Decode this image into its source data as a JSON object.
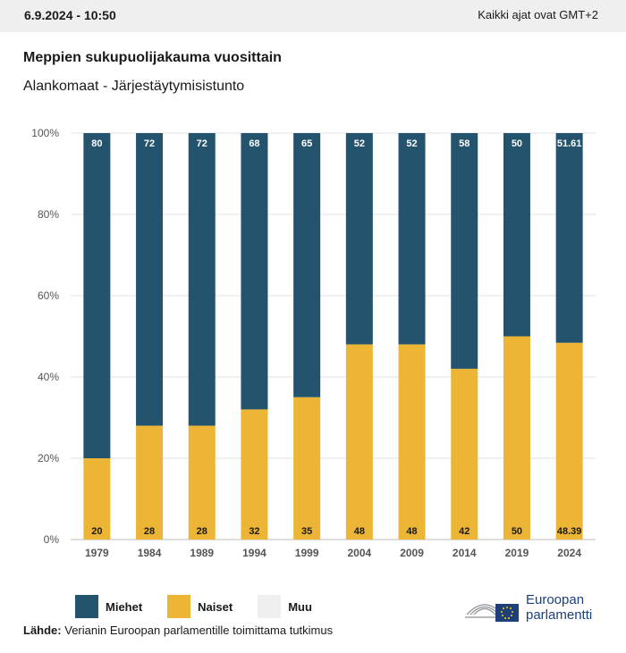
{
  "header": {
    "datetime": "6.9.2024 - 10:50",
    "timezone_note": "Kaikki ajat ovat GMT+2"
  },
  "chart_data": {
    "type": "bar",
    "stacked": true,
    "title": "Meppien sukupuolijakauma vuosittain",
    "subtitle": "Alankomaat - Järjestäytymisistunto",
    "categories": [
      "1979",
      "1984",
      "1989",
      "1994",
      "1999",
      "2004",
      "2009",
      "2014",
      "2019",
      "2024"
    ],
    "series": [
      {
        "name": "Naiset",
        "color": "#ecb535",
        "values": [
          20,
          28,
          28,
          32,
          35,
          48,
          48,
          42,
          50,
          48.39
        ]
      },
      {
        "name": "Miehet",
        "color": "#24536e",
        "values": [
          80,
          72,
          72,
          68,
          65,
          52,
          52,
          58,
          50,
          51.61
        ]
      },
      {
        "name": "Muu",
        "color": "#efefef",
        "values": [
          0,
          0,
          0,
          0,
          0,
          0,
          0,
          0,
          0,
          0
        ]
      }
    ],
    "yticks": [
      "0%",
      "20%",
      "40%",
      "60%",
      "80%",
      "100%"
    ],
    "ylim": [
      0,
      100
    ],
    "grid": true,
    "legend_position": "bottom-left"
  },
  "legend": [
    {
      "label": "Miehet",
      "color": "#24536e"
    },
    {
      "label": "Naiset",
      "color": "#ecb535"
    },
    {
      "label": "Muu",
      "color": "#efefef"
    }
  ],
  "source": {
    "label": "Lähde:",
    "text": "Verianin Euroopan parlamentille toimittama tutkimus"
  },
  "logo": {
    "line1": "Euroopan",
    "line2": "parlamentti"
  }
}
